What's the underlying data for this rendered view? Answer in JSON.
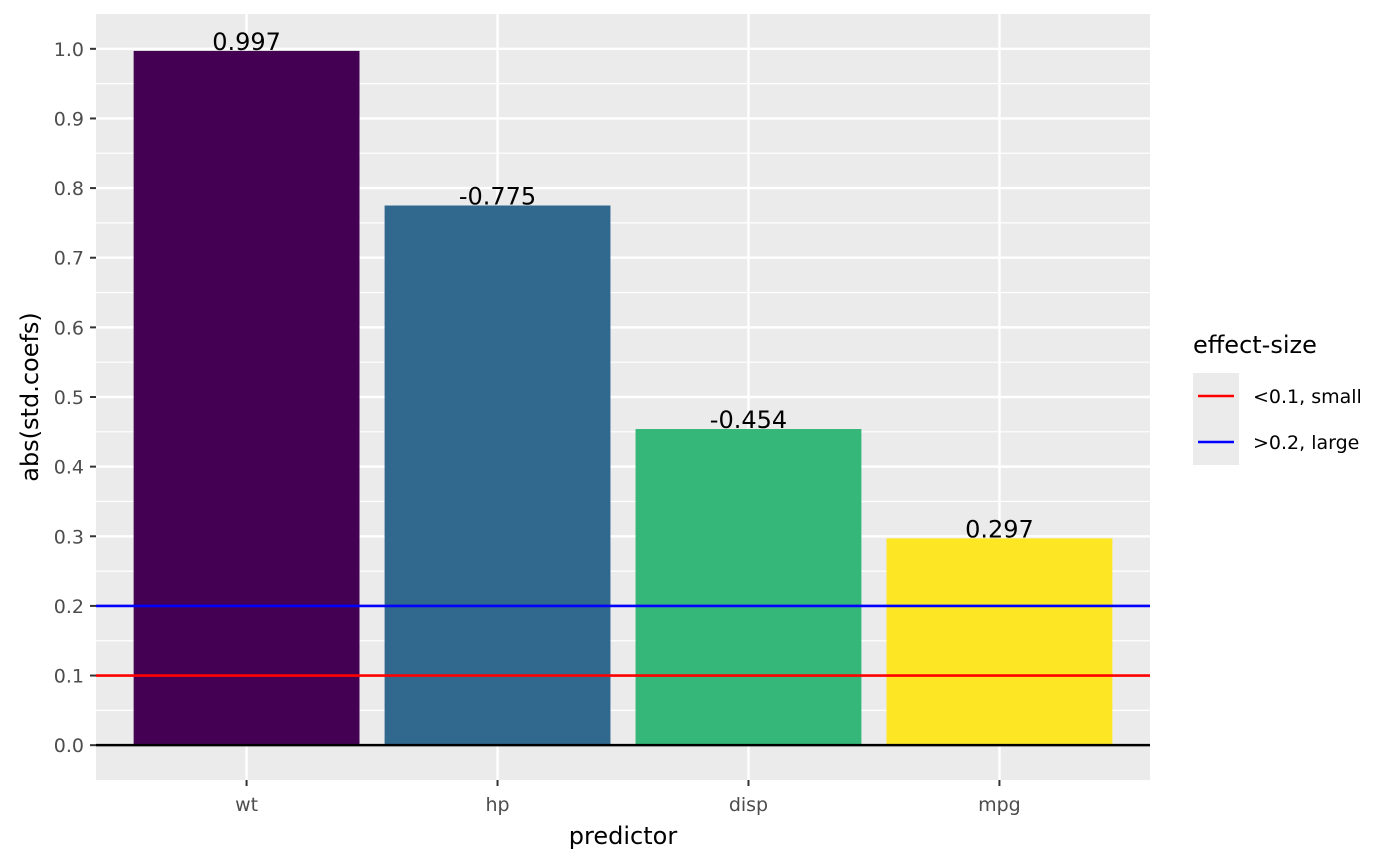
{
  "chart_data": {
    "type": "bar",
    "xlabel": "predictor",
    "ylabel": "abs(std.coefs)",
    "categories": [
      "wt",
      "hp",
      "disp",
      "mpg"
    ],
    "values": [
      0.997,
      0.775,
      0.454,
      0.297
    ],
    "data_labels": [
      "0.997",
      "-0.775",
      "-0.454",
      "0.297"
    ],
    "bar_colors": [
      "#440154",
      "#31688E",
      "#35B779",
      "#FDE725"
    ],
    "ylim": [
      -0.05,
      1.05
    ],
    "yticks": [
      0.0,
      0.1,
      0.2,
      0.3,
      0.4,
      0.5,
      0.6,
      0.7,
      0.8,
      0.9,
      1.0
    ],
    "ytick_labels": [
      "0.0",
      "0.1",
      "0.2",
      "0.3",
      "0.4",
      "0.5",
      "0.6",
      "0.7",
      "0.8",
      "0.9",
      "1.0"
    ],
    "grid": true,
    "panel_background": "#EBEBEB",
    "zero_line_color": "#000000",
    "reference_lines": [
      {
        "label": "<0.1, small",
        "y": 0.1,
        "color": "#FF0000"
      },
      {
        "label": ">0.2, large",
        "y": 0.2,
        "color": "#0000FF"
      }
    ],
    "legend": {
      "title": "effect-size",
      "placement": "right"
    }
  }
}
